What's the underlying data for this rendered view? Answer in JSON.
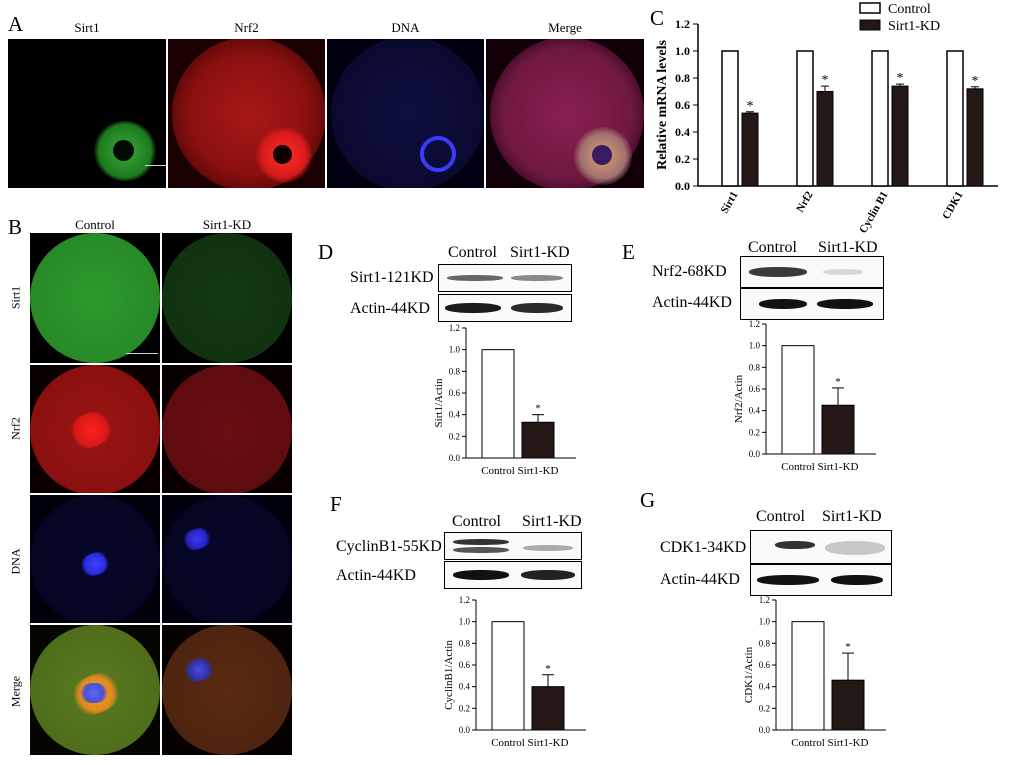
{
  "panels": {
    "A": {
      "label": "A",
      "headers": [
        "Sirt1",
        "Nrf2",
        "DNA",
        "Merge"
      ]
    },
    "B": {
      "label": "B",
      "col_headers": [
        "Control",
        "Sirt1-KD"
      ],
      "row_labels": [
        "Sirt1",
        "Nrf2",
        "DNA",
        "Merge"
      ]
    },
    "C": {
      "label": "C"
    },
    "D": {
      "label": "D",
      "protein_label": "Sirt1-121KD",
      "loading_label": "Actin-44KD",
      "col_headers": [
        "Control",
        "Sirt1-KD"
      ]
    },
    "E": {
      "label": "E",
      "protein_label": "Nrf2-68KD",
      "loading_label": "Actin-44KD",
      "col_headers": [
        "Control",
        "Sirt1-KD"
      ]
    },
    "F": {
      "label": "F",
      "protein_label": "CyclinB1-55KD",
      "loading_label": "Actin-44KD",
      "col_headers": [
        "Control",
        "Sirt1-KD"
      ]
    },
    "G": {
      "label": "G",
      "protein_label": "CDK1-34KD",
      "loading_label": "Actin-44KD",
      "col_headers": [
        "Control",
        "Sirt1-KD"
      ]
    }
  },
  "colors": {
    "control_bar": "#ffffff",
    "kd_bar": "#231815",
    "green": "#1f8a1f",
    "red": "#c8141e",
    "blue": "#2a2ae0"
  },
  "chart_data": [
    {
      "panel": "C",
      "type": "bar",
      "ylabel": "Relative mRNA levels",
      "categories": [
        "Sirt1",
        "Nrf2",
        "Cyclin B1",
        "CDK1"
      ],
      "series": [
        {
          "name": "Control",
          "values": [
            1.0,
            1.0,
            1.0,
            1.0
          ]
        },
        {
          "name": "Sirt1-KD",
          "values": [
            0.54,
            0.7,
            0.74,
            0.72
          ],
          "errors": [
            0.01,
            0.04,
            0.015,
            0.015
          ]
        }
      ],
      "ylim": [
        0,
        1.2
      ],
      "yticks": [
        "0.0",
        "0.2",
        "0.4",
        "0.6",
        "0.8",
        "1.0",
        "1.2"
      ],
      "significance": "*",
      "legend_position": "top-right"
    },
    {
      "panel": "D",
      "type": "bar",
      "ylabel": "Sirt1/Actin",
      "categories": [
        "Control",
        "Sirt1-KD"
      ],
      "values": [
        1.0,
        0.33
      ],
      "errors": [
        0,
        0.07
      ],
      "ylim": [
        0,
        1.2
      ],
      "yticks": [
        "0.0",
        "0.2",
        "0.4",
        "0.6",
        "0.8",
        "1.0",
        "1.2"
      ],
      "significance": "*"
    },
    {
      "panel": "E",
      "type": "bar",
      "ylabel": "Nrf2/Actin",
      "categories": [
        "Control",
        "Sirt1-KD"
      ],
      "values": [
        1.0,
        0.45
      ],
      "errors": [
        0,
        0.16
      ],
      "ylim": [
        0,
        1.2
      ],
      "yticks": [
        "0.0",
        "0.2",
        "0.4",
        "0.6",
        "0.8",
        "1.0",
        "1.2"
      ],
      "significance": "*"
    },
    {
      "panel": "F",
      "type": "bar",
      "ylabel": "CyclinB1/Actin",
      "categories": [
        "Control",
        "Sirt1-KD"
      ],
      "values": [
        1.0,
        0.4
      ],
      "errors": [
        0,
        0.11
      ],
      "ylim": [
        0,
        1.2
      ],
      "yticks": [
        "0.0",
        "0.2",
        "0.4",
        "0.6",
        "0.8",
        "1.0",
        "1.2"
      ],
      "significance": "*"
    },
    {
      "panel": "G",
      "type": "bar",
      "ylabel": "CDK1/Actin",
      "categories": [
        "Control",
        "Sirt1-KD"
      ],
      "values": [
        1.0,
        0.46
      ],
      "errors": [
        0,
        0.25
      ],
      "ylim": [
        0,
        1.2
      ],
      "yticks": [
        "0.0",
        "0.2",
        "0.4",
        "0.6",
        "0.8",
        "1.0",
        "1.2"
      ],
      "significance": "*"
    }
  ]
}
